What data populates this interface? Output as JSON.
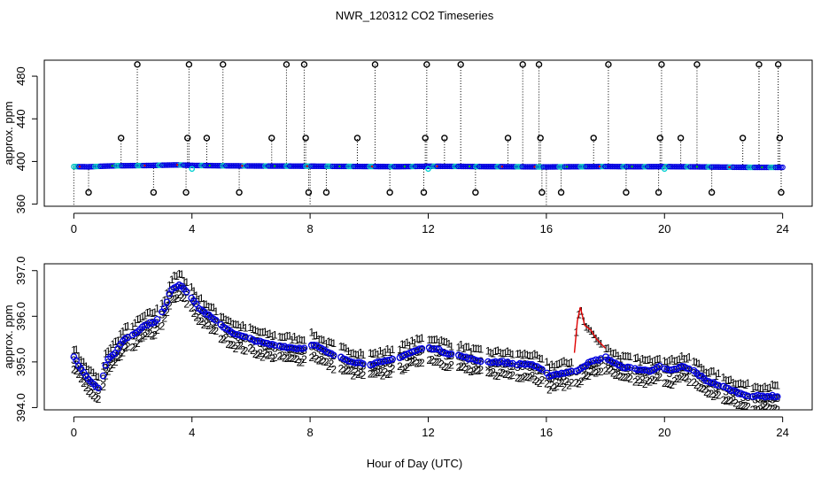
{
  "page": {
    "title": "NWR_120312  CO2 Timeseries",
    "xlabel": "Hour of Day (UTC)"
  },
  "chart_data": [
    {
      "type": "scatter",
      "panel": "top",
      "title": "",
      "ylabel": "approx. ppm",
      "xlim": [
        -1,
        25
      ],
      "ylim": [
        358,
        495
      ],
      "xticks": [
        0,
        4,
        8,
        12,
        16,
        20,
        24
      ],
      "xtick_labels": [
        "0",
        "4",
        "8",
        "12",
        "16",
        "20",
        "24"
      ],
      "yticks": [
        360,
        400,
        440,
        480
      ],
      "ytick_labels": [
        "360",
        "400",
        "440",
        "480"
      ],
      "baseline": [
        [
          0,
          395.2
        ],
        [
          0.5,
          395
        ],
        [
          1,
          395.6
        ],
        [
          1.5,
          396
        ],
        [
          2,
          396.1
        ],
        [
          2.5,
          396.2
        ],
        [
          3,
          396.5
        ],
        [
          3.5,
          396.8
        ],
        [
          4,
          396.3
        ],
        [
          5,
          396
        ],
        [
          6,
          395.8
        ],
        [
          7,
          395.7
        ],
        [
          8,
          395.6
        ],
        [
          9,
          395.4
        ],
        [
          10,
          395.3
        ],
        [
          11,
          395.2
        ],
        [
          12,
          395.5
        ],
        [
          13,
          395.4
        ],
        [
          14,
          395.2
        ],
        [
          15,
          395.1
        ],
        [
          16,
          394.9
        ],
        [
          17,
          395.1
        ],
        [
          18,
          395.3
        ],
        [
          19,
          395.1
        ],
        [
          20,
          395.2
        ],
        [
          21,
          395
        ],
        [
          22,
          394.7
        ],
        [
          23,
          394.5
        ],
        [
          24,
          394.5
        ]
      ],
      "spikes_high": [
        2.15,
        3.9,
        5.05,
        7.2,
        7.8,
        10.2,
        11.95,
        13.1,
        15.2,
        15.75,
        18.1,
        19.9,
        21.1,
        23.2,
        23.85
      ],
      "spikes_mid": [
        1.6,
        3.85,
        4.5,
        6.7,
        7.85,
        9.6,
        11.9,
        12.55,
        14.7,
        15.8,
        17.6,
        19.85,
        20.55,
        22.65,
        23.9
      ],
      "spikes_low": [
        0.5,
        2.7,
        3.8,
        5.6,
        7.95,
        8.55,
        10.7,
        11.85,
        13.6,
        15.85,
        16.5,
        18.7,
        19.8,
        21.6,
        23.95
      ],
      "spike_values": {
        "high": 491,
        "mid": 422,
        "low": 371
      },
      "cyan_marks": [
        [
          4,
          393
        ],
        [
          12,
          393
        ],
        [
          20,
          393
        ]
      ]
    },
    {
      "type": "scatter",
      "panel": "bottom",
      "title": "",
      "ylabel": "approx. ppm",
      "xlim": [
        -1,
        25
      ],
      "ylim": [
        393.95,
        397.15
      ],
      "xticks": [
        0,
        4,
        8,
        12,
        16,
        20,
        24
      ],
      "xtick_labels": [
        "0",
        "4",
        "8",
        "12",
        "16",
        "20",
        "24"
      ],
      "yticks": [
        394.0,
        395.0,
        396.0,
        397.0
      ],
      "ytick_labels": [
        "394.0",
        "395.0",
        "396.0",
        "397.0"
      ],
      "series": [
        {
          "name": "1",
          "color": "#e00000",
          "offset": 0.22,
          "jitter": 0.05
        },
        {
          "name": "2",
          "color": "#00c000",
          "offset": -0.25,
          "jitter": 0.06
        },
        {
          "name": "3",
          "color": "#0000e0",
          "offset": -0.03,
          "jitter": 0.04
        },
        {
          "name": "o",
          "color": "#0000e0",
          "offset": 0,
          "jitter": 0.02
        }
      ],
      "series1_peak": [
        [
          16.95,
          395.2
        ],
        [
          17.05,
          395.9
        ],
        [
          17.15,
          396.2
        ],
        [
          17.3,
          395.8
        ],
        [
          17.5,
          395.7
        ],
        [
          17.7,
          395.5
        ],
        [
          18,
          395.3
        ]
      ],
      "curve": [
        [
          0,
          395.1
        ],
        [
          0.2,
          394.9
        ],
        [
          0.4,
          394.7
        ],
        [
          0.7,
          394.5
        ],
        [
          0.9,
          394.4
        ],
        [
          1.1,
          395
        ],
        [
          1.4,
          395.2
        ],
        [
          1.7,
          395.5
        ],
        [
          2,
          395.6
        ],
        [
          2.4,
          395.8
        ],
        [
          2.8,
          395.9
        ],
        [
          3.1,
          396.2
        ],
        [
          3.3,
          396.6
        ],
        [
          3.6,
          396.7
        ],
        [
          3.9,
          396.5
        ],
        [
          4.2,
          396.2
        ],
        [
          4.6,
          396
        ],
        [
          5,
          395.8
        ],
        [
          5.5,
          395.6
        ],
        [
          6,
          395.5
        ],
        [
          6.5,
          395.4
        ],
        [
          7,
          395.35
        ],
        [
          7.5,
          395.3
        ],
        [
          7.8,
          395.3
        ],
        [
          8.1,
          395.4
        ],
        [
          8.6,
          395.2
        ],
        [
          9,
          395.1
        ],
        [
          9.5,
          395
        ],
        [
          10,
          394.95
        ],
        [
          10.5,
          395
        ],
        [
          11,
          395.1
        ],
        [
          11.4,
          395.2
        ],
        [
          11.8,
          395.3
        ],
        [
          12.2,
          395.3
        ],
        [
          12.6,
          395.2
        ],
        [
          13,
          395.15
        ],
        [
          13.5,
          395.05
        ],
        [
          14,
          395
        ],
        [
          14.5,
          395
        ],
        [
          15,
          394.95
        ],
        [
          15.5,
          394.95
        ],
        [
          15.9,
          394.8
        ],
        [
          16.1,
          394.7
        ],
        [
          16.5,
          394.75
        ],
        [
          17,
          394.8
        ],
        [
          17.5,
          395
        ],
        [
          18,
          395.1
        ],
        [
          18.5,
          394.9
        ],
        [
          19,
          394.85
        ],
        [
          19.5,
          394.8
        ],
        [
          19.8,
          394.9
        ],
        [
          20.2,
          394.8
        ],
        [
          20.6,
          394.9
        ],
        [
          21,
          394.8
        ],
        [
          21.4,
          394.6
        ],
        [
          21.8,
          394.5
        ],
        [
          22.2,
          394.4
        ],
        [
          22.6,
          394.3
        ],
        [
          23,
          394.25
        ],
        [
          23.4,
          394.25
        ],
        [
          23.8,
          394.25
        ]
      ]
    }
  ]
}
